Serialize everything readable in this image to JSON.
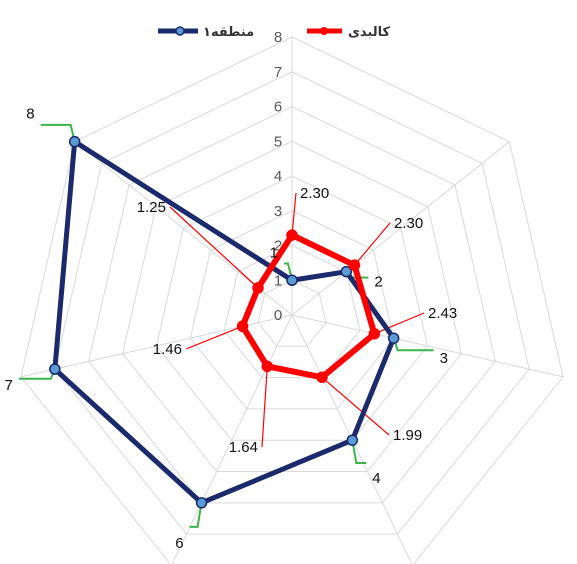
{
  "chart_data": {
    "type": "radar",
    "title": "",
    "axis_ticks": [
      "0",
      "1",
      "2",
      "3",
      "4",
      "5",
      "6",
      "7",
      "8"
    ],
    "rmax": 8,
    "grid": true,
    "legend_position": "top",
    "series": [
      {
        "name": "منطقه۱",
        "color": "#1a2a6c",
        "marker_color": "#5b9bd5",
        "values": [
          1,
          2,
          3,
          4,
          6,
          7,
          8
        ],
        "labels": [
          "1",
          "2",
          "3",
          "4",
          "6",
          "7",
          "8"
        ]
      },
      {
        "name": "کالبدی",
        "color": "#ff0000",
        "values": [
          2.3,
          2.3,
          2.43,
          1.99,
          1.64,
          1.46,
          1.25
        ],
        "labels": [
          "2.30",
          "2.30",
          "2.43",
          "1.99",
          "1.64",
          "1.46",
          "1.25"
        ]
      }
    ]
  }
}
